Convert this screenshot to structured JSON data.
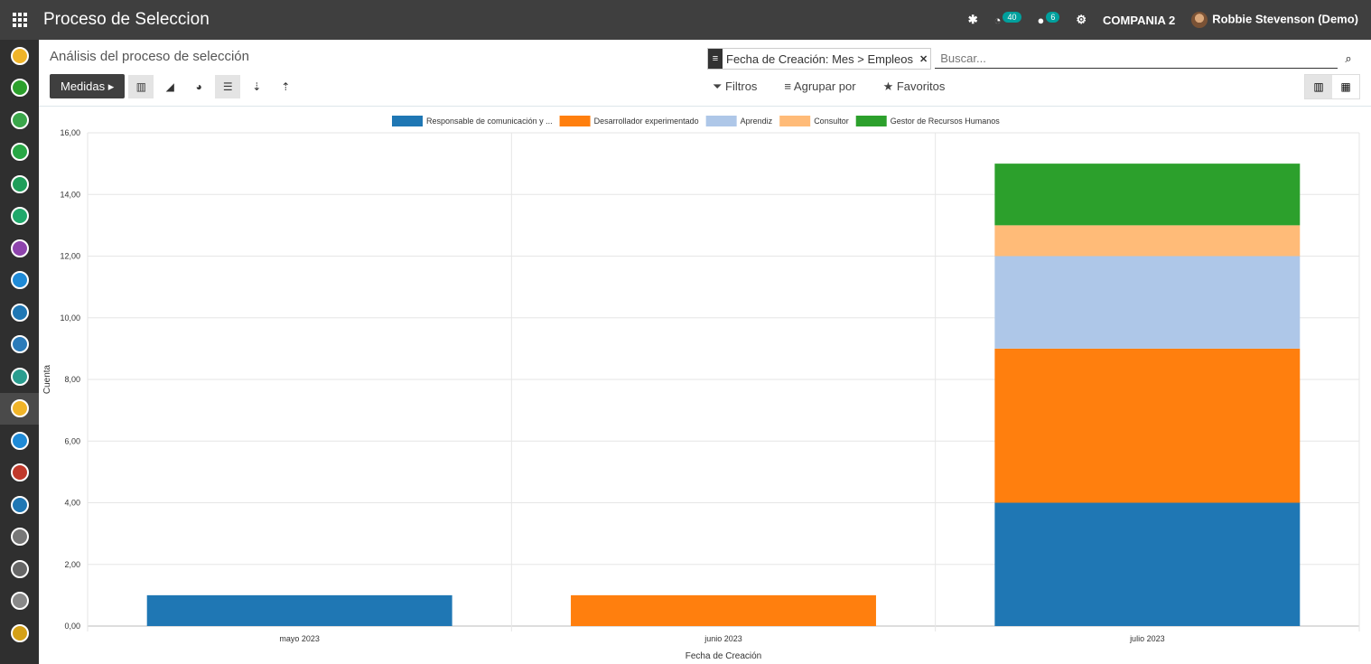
{
  "topbar": {
    "app_title": "Proceso de Seleccion",
    "activity_count": "40",
    "messages_count": "6",
    "company": "COMPANIA 2",
    "user": "Robbie Stevenson (Demo)"
  },
  "breadcrumb": "Análisis del proceso de selección",
  "search": {
    "facet": "Fecha de Creación: Mes > Empleos",
    "placeholder": "Buscar..."
  },
  "toolbar": {
    "measures_label": "Medidas"
  },
  "filters": {
    "filtros": "Filtros",
    "agrupar": "Agrupar por",
    "favoritos": "Favoritos"
  },
  "colors": {
    "blue": "#1f77b4",
    "orange": "#ff7f0e",
    "lightblue": "#aec7e8",
    "peach": "#ffbb78",
    "green": "#2ca02c"
  },
  "chart_data": {
    "type": "bar",
    "stacked": true,
    "categories": [
      "mayo 2023",
      "junio 2023",
      "julio 2023"
    ],
    "series": [
      {
        "name": "Responsable de comunicación y ...",
        "color": "#1f77b4",
        "values": [
          1,
          0,
          4
        ]
      },
      {
        "name": "Desarrollador experimentado",
        "color": "#ff7f0e",
        "values": [
          0,
          1,
          5
        ]
      },
      {
        "name": "Aprendiz",
        "color": "#aec7e8",
        "values": [
          0,
          0,
          3
        ]
      },
      {
        "name": "Consultor",
        "color": "#ffbb78",
        "values": [
          0,
          0,
          1
        ]
      },
      {
        "name": "Gestor de Recursos Humanos",
        "color": "#2ca02c",
        "values": [
          0,
          0,
          2
        ]
      }
    ],
    "xlabel": "Fecha de Creación",
    "ylabel": "Cuenta",
    "ylim": [
      0,
      16
    ],
    "yticks": [
      "0,00",
      "2,00",
      "4,00",
      "6,00",
      "8,00",
      "10,00",
      "12,00",
      "14,00",
      "16,00"
    ],
    "legend": "top",
    "grid": true
  }
}
